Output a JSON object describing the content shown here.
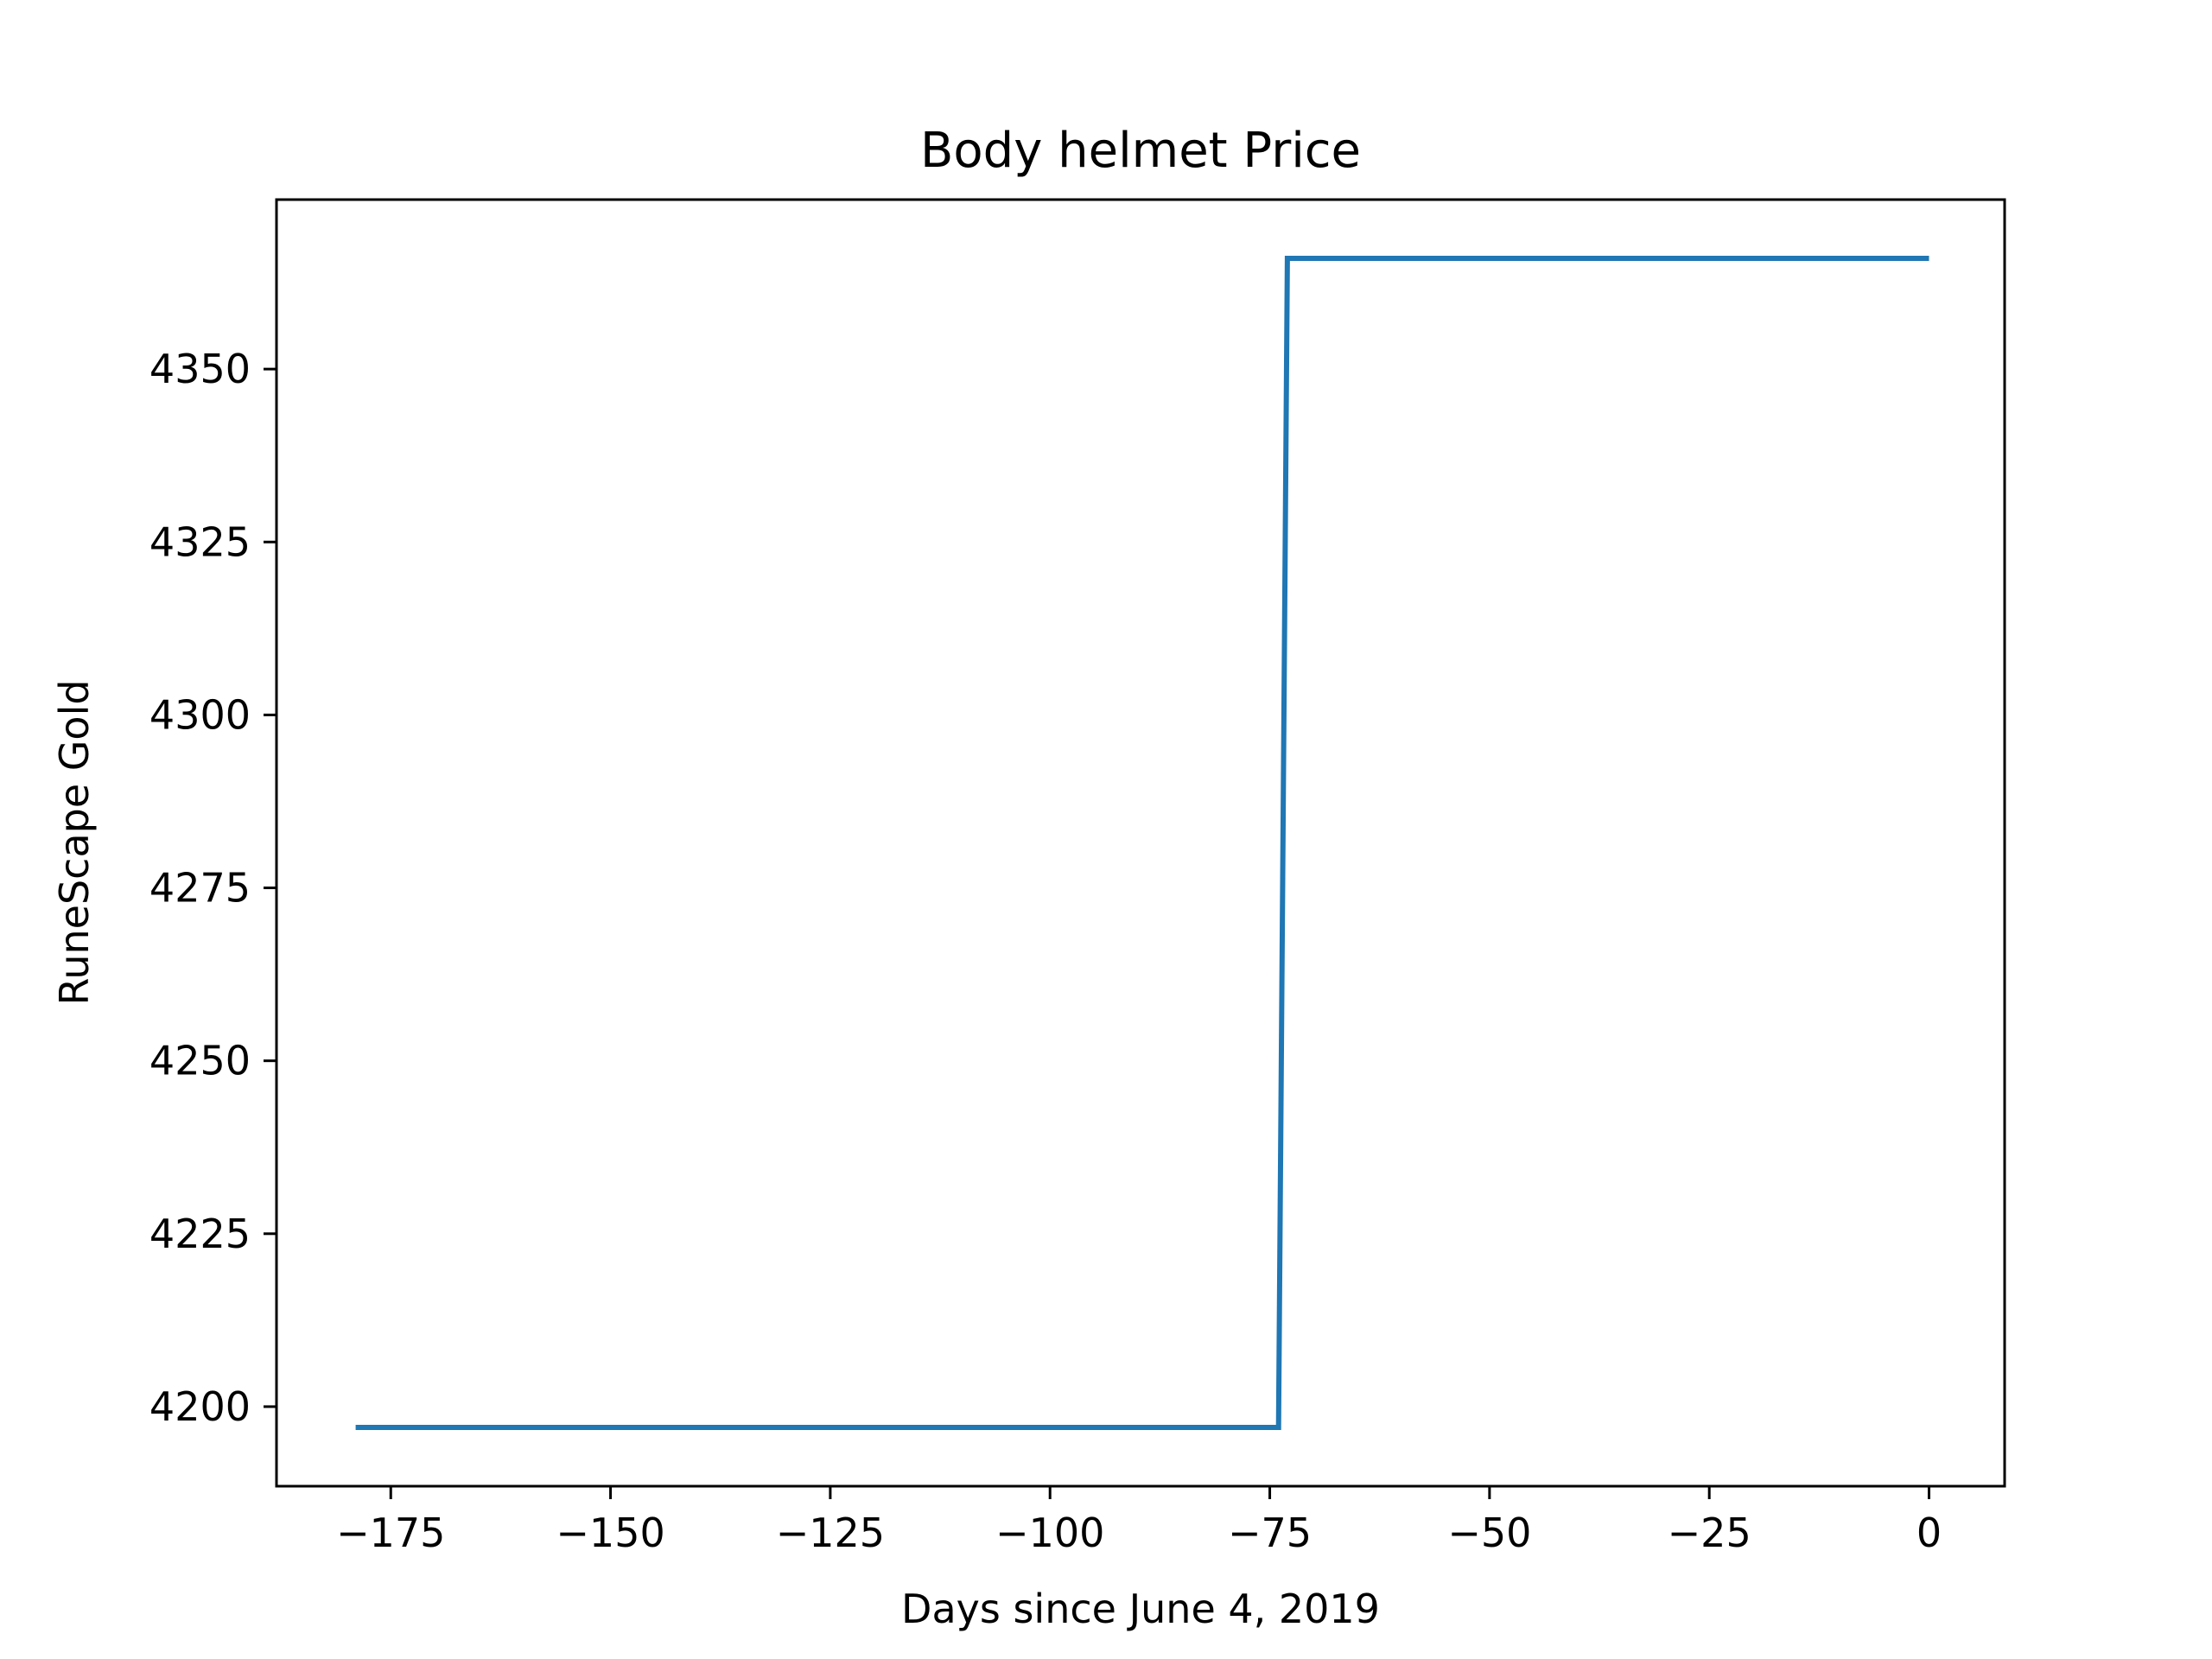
{
  "chart_data": {
    "type": "line",
    "title": "Body helmet Price",
    "xlabel": "Days since June 4, 2019",
    "ylabel": "RuneScape Gold",
    "xlim": [
      -188,
      8.6
    ],
    "ylim": [
      4188.5,
      4374.5
    ],
    "xticks": [
      -175,
      -150,
      -125,
      -100,
      -75,
      -50,
      -25,
      0
    ],
    "xtick_labels": [
      "−175",
      "−150",
      "−125",
      "−100",
      "−75",
      "−50",
      "−25",
      "0"
    ],
    "yticks": [
      4200,
      4225,
      4250,
      4275,
      4300,
      4325,
      4350
    ],
    "ytick_labels": [
      "4200",
      "4225",
      "4250",
      "4275",
      "4300",
      "4325",
      "4350"
    ],
    "grid": false,
    "legend": "none",
    "series": [
      {
        "color": "#1f77b4",
        "x": [
          -179,
          -74,
          -73,
          0
        ],
        "y": [
          4197,
          4197,
          4366,
          4366
        ]
      }
    ]
  }
}
